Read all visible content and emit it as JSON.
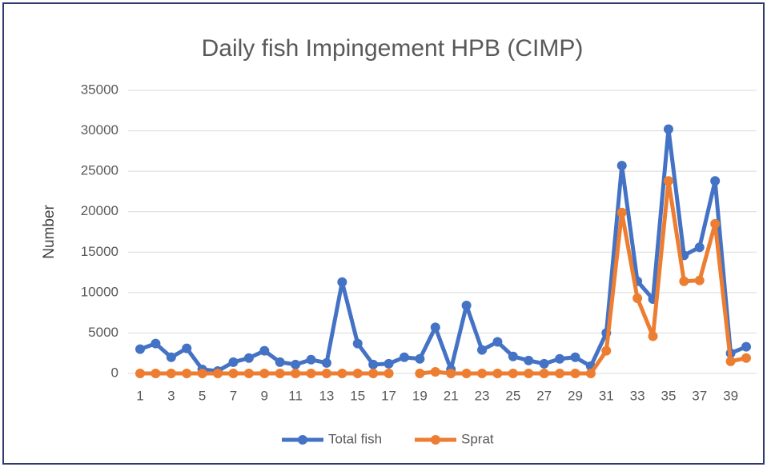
{
  "chart_data": {
    "type": "line",
    "title": "Daily fish Impingement HPB (CIMP)",
    "y_label": "Number",
    "categories": [
      1,
      null,
      3,
      null,
      5,
      null,
      7,
      null,
      9,
      null,
      11,
      null,
      13,
      null,
      15,
      null,
      17,
      null,
      19,
      null,
      21,
      null,
      23,
      null,
      25,
      null,
      27,
      null,
      29,
      null,
      31,
      null,
      33,
      null,
      35,
      null,
      37,
      null,
      39,
      null
    ],
    "series": [
      {
        "name": "Total fish",
        "color": "#4472c4",
        "values": [
          3000,
          3700,
          2000,
          3100,
          500,
          300,
          1400,
          1900,
          2800,
          1400,
          1100,
          1700,
          1300,
          11300,
          3700,
          1100,
          1200,
          2000,
          1800,
          5700,
          500,
          8400,
          2900,
          3900,
          2100,
          1600,
          1200,
          1800,
          2000,
          900,
          5000,
          25700,
          11400,
          9200,
          30200,
          14600,
          15600,
          23800,
          2500,
          3300
        ]
      },
      {
        "name": "Sprat",
        "color": "#ed7d31",
        "values": [
          0,
          0,
          0,
          0,
          0,
          0,
          0,
          0,
          0,
          0,
          0,
          0,
          0,
          0,
          0,
          0,
          0,
          null,
          0,
          200,
          0,
          0,
          0,
          0,
          0,
          0,
          0,
          0,
          0,
          0,
          2800,
          19900,
          9300,
          4600,
          23800,
          11400,
          11500,
          18500,
          1500,
          1900
        ]
      }
    ],
    "ylim": [
      0,
      35000
    ],
    "yticks": [
      0,
      5000,
      10000,
      15000,
      20000,
      25000,
      30000,
      35000
    ],
    "grid": true,
    "legend": "bottom"
  }
}
